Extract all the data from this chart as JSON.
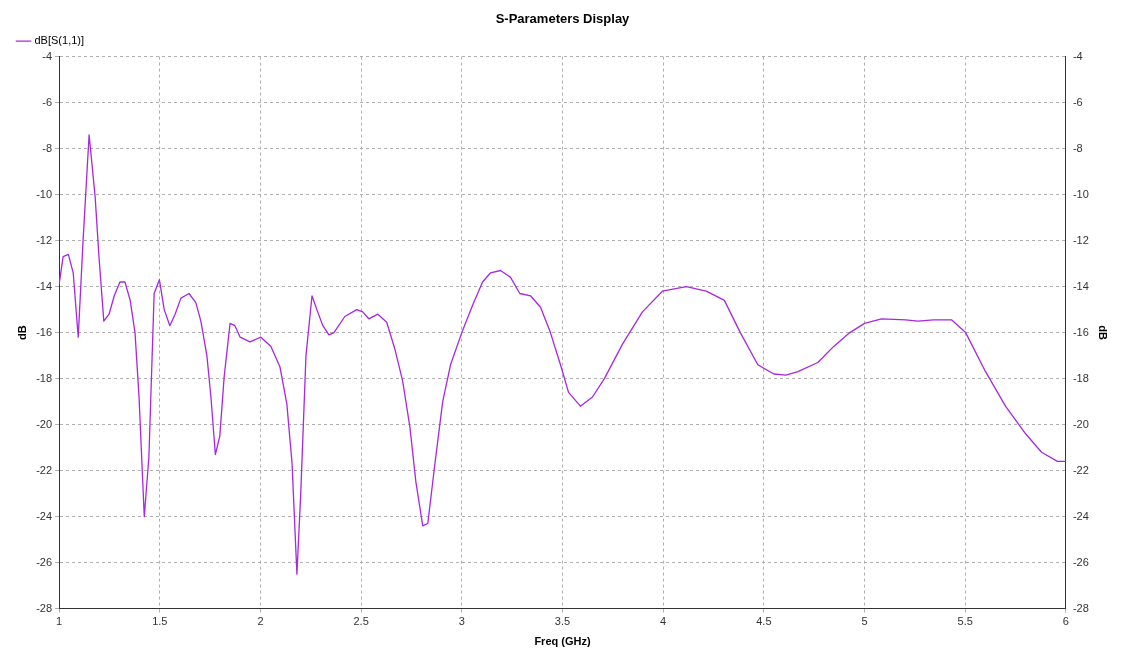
{
  "chart_data": {
    "type": "line",
    "title": "S-Parameters Display",
    "xlabel": "Freq (GHz)",
    "ylabel": "dB",
    "y2label": "dB",
    "xlim": [
      1,
      6
    ],
    "xticks": [
      1,
      1.5,
      2,
      2.5,
      3,
      3.5,
      4,
      4.5,
      5,
      5.5,
      6
    ],
    "ylim": [
      -28,
      -4
    ],
    "yticks": [
      -28,
      -26,
      -24,
      -22,
      -20,
      -18,
      -16,
      -14,
      -12,
      -10,
      -8,
      -6,
      -4
    ],
    "y2lim": [
      -28,
      -4
    ],
    "y2ticks": [
      -28,
      -26,
      -24,
      -22,
      -20,
      -18,
      -16,
      -14,
      -12,
      -10,
      -8,
      -6,
      -4
    ],
    "grid": true,
    "legend": "top left",
    "marker": "none",
    "line_style": "solid",
    "series": [
      {
        "name": "dB[S(1,1)]",
        "color": "#a628e0",
        "x": [
          1.0,
          1.02,
          1.046,
          1.07,
          1.095,
          1.119,
          1.149,
          1.179,
          1.198,
          1.222,
          1.248,
          1.274,
          1.302,
          1.327,
          1.353,
          1.377,
          1.397,
          1.423,
          1.446,
          1.472,
          1.498,
          1.522,
          1.55,
          1.576,
          1.605,
          1.645,
          1.679,
          1.704,
          1.734,
          1.754,
          1.776,
          1.798,
          1.82,
          1.849,
          1.873,
          1.899,
          1.948,
          2.002,
          2.052,
          2.097,
          2.131,
          2.157,
          2.181,
          2.2,
          2.226,
          2.256,
          2.28,
          2.31,
          2.34,
          2.365,
          2.419,
          2.478,
          2.508,
          2.538,
          2.583,
          2.627,
          2.667,
          2.706,
          2.742,
          2.772,
          2.806,
          2.831,
          2.865,
          2.905,
          2.944,
          3.0,
          3.054,
          3.103,
          3.143,
          3.192,
          3.242,
          3.288,
          3.341,
          3.391,
          3.44,
          3.49,
          3.53,
          3.589,
          3.649,
          3.708,
          3.798,
          3.897,
          3.996,
          4.115,
          4.214,
          4.304,
          4.383,
          4.47,
          4.55,
          4.609,
          4.669,
          4.768,
          4.847,
          4.927,
          5.0,
          5.085,
          5.204,
          5.264,
          5.343,
          5.433,
          5.502,
          5.601,
          5.7,
          5.8,
          5.879,
          5.958,
          6.0
        ],
        "values": [
          -13.9,
          -12.7,
          -12.6,
          -13.4,
          -16.2,
          -12.0,
          -7.4,
          -10.1,
          -12.7,
          -15.5,
          -15.2,
          -14.4,
          -13.8,
          -13.8,
          -14.6,
          -16.0,
          -18.8,
          -24.0,
          -21.4,
          -14.3,
          -13.7,
          -15.0,
          -15.7,
          -15.2,
          -14.5,
          -14.3,
          -14.7,
          -15.5,
          -17.0,
          -18.8,
          -21.3,
          -20.5,
          -17.9,
          -15.6,
          -15.7,
          -16.2,
          -16.4,
          -16.2,
          -16.6,
          -17.5,
          -19.1,
          -21.7,
          -26.5,
          -23.0,
          -17.0,
          -14.4,
          -15.0,
          -15.7,
          -16.1,
          -16.0,
          -15.3,
          -15.0,
          -15.1,
          -15.4,
          -15.2,
          -15.55,
          -16.7,
          -18.1,
          -20.1,
          -22.5,
          -24.4,
          -24.3,
          -21.8,
          -19.0,
          -17.4,
          -16.0,
          -14.8,
          -13.8,
          -13.4,
          -13.3,
          -13.6,
          -14.3,
          -14.4,
          -14.9,
          -16.0,
          -17.4,
          -18.6,
          -19.2,
          -18.8,
          -18.0,
          -16.5,
          -15.1,
          -14.2,
          -14.0,
          -14.2,
          -14.6,
          -16.0,
          -17.4,
          -17.8,
          -17.85,
          -17.7,
          -17.3,
          -16.6,
          -16.0,
          -15.6,
          -15.4,
          -15.45,
          -15.5,
          -15.45,
          -15.45,
          -16.0,
          -17.7,
          -19.2,
          -20.4,
          -21.2,
          -21.6,
          -21.6
        ]
      }
    ]
  }
}
